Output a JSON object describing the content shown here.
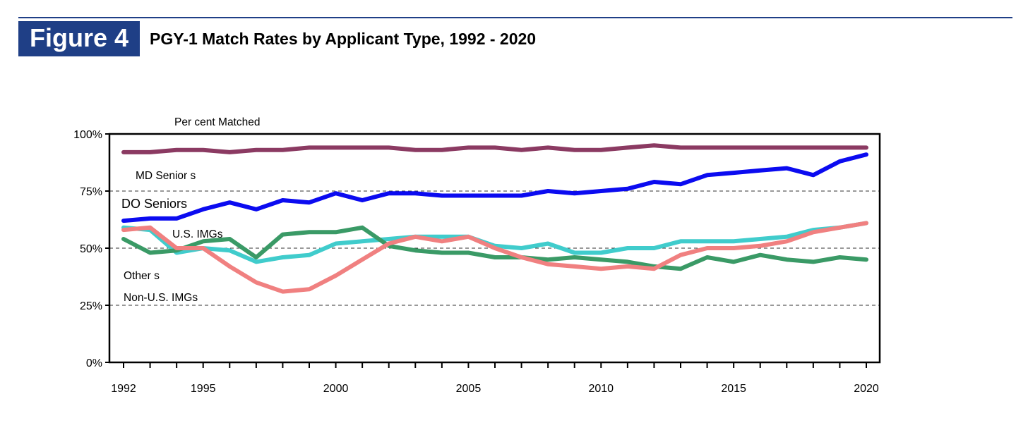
{
  "header": {
    "figure_label": "Figure 4",
    "title": "PGY-1 Match Rates by Applicant Type, 1992 - 2020"
  },
  "colors": {
    "brand": "#1f3f86",
    "md_seniors": "#8b3a62",
    "do_seniors": "#0b0bf0",
    "us_imgs": "#40cccc",
    "others": "#3a9a66",
    "non_us_imgs": "#f08080"
  },
  "chart_data": {
    "type": "line",
    "title": "Percent Matched",
    "xlabel": "",
    "ylabel": "",
    "ylim": [
      0,
      100
    ],
    "xlim": [
      1992,
      2020
    ],
    "y_ticks": [
      "0%",
      "25%",
      "50%",
      "75%",
      "100%"
    ],
    "x_tick_labels": [
      "1992",
      "1995",
      "2000",
      "2005",
      "2010",
      "2015",
      "2020"
    ],
    "grid": "dashed horizontal at 25%, 50%, 75%",
    "x": [
      1992,
      1993,
      1994,
      1995,
      1996,
      1997,
      1998,
      1999,
      2000,
      2001,
      2002,
      2003,
      2004,
      2005,
      2006,
      2007,
      2008,
      2009,
      2010,
      2011,
      2012,
      2013,
      2014,
      2015,
      2016,
      2017,
      2018,
      2019,
      2020
    ],
    "series": [
      {
        "name": "MD Seniors",
        "color": "#8b3a62",
        "values": [
          92,
          92,
          93,
          93,
          92,
          93,
          93,
          94,
          94,
          94,
          94,
          93,
          93,
          94,
          94,
          93,
          94,
          93,
          93,
          94,
          95,
          94,
          94,
          94,
          94,
          94,
          94,
          94,
          94
        ]
      },
      {
        "name": "DO Seniors",
        "color": "#0b0bf0",
        "values": [
          62,
          63,
          63,
          67,
          70,
          67,
          71,
          70,
          74,
          71,
          74,
          74,
          73,
          73,
          73,
          73,
          75,
          74,
          75,
          76,
          79,
          78,
          82,
          83,
          84,
          85,
          82,
          88,
          91
        ]
      },
      {
        "name": "U.S. IMGs",
        "color": "#40cccc",
        "values": [
          59,
          58,
          48,
          50,
          49,
          44,
          46,
          47,
          52,
          53,
          54,
          55,
          55,
          55,
          51,
          50,
          52,
          48,
          48,
          50,
          50,
          53,
          53,
          53,
          54,
          55,
          58,
          59,
          61
        ]
      },
      {
        "name": "Others",
        "color": "#3a9a66",
        "values": [
          54,
          48,
          49,
          53,
          54,
          46,
          56,
          57,
          57,
          59,
          51,
          49,
          48,
          48,
          46,
          46,
          45,
          46,
          45,
          44,
          42,
          41,
          46,
          44,
          47,
          45,
          44,
          46,
          45
        ]
      },
      {
        "name": "Non-U.S. IMGs",
        "color": "#f08080",
        "values": [
          58,
          59,
          50,
          50,
          42,
          35,
          31,
          32,
          38,
          45,
          52,
          55,
          53,
          55,
          50,
          46,
          43,
          42,
          41,
          42,
          41,
          47,
          50,
          50,
          51,
          53,
          57,
          59,
          61
        ]
      }
    ],
    "labels": {
      "md_seniors": "MD Senior s",
      "do_seniors": "DO Seniors",
      "us_imgs": "U.S. IMGs",
      "others": "Other s",
      "non_us_imgs": "Non-U.S. IMGs",
      "ylabel_caption": "Per cent Matched"
    }
  }
}
